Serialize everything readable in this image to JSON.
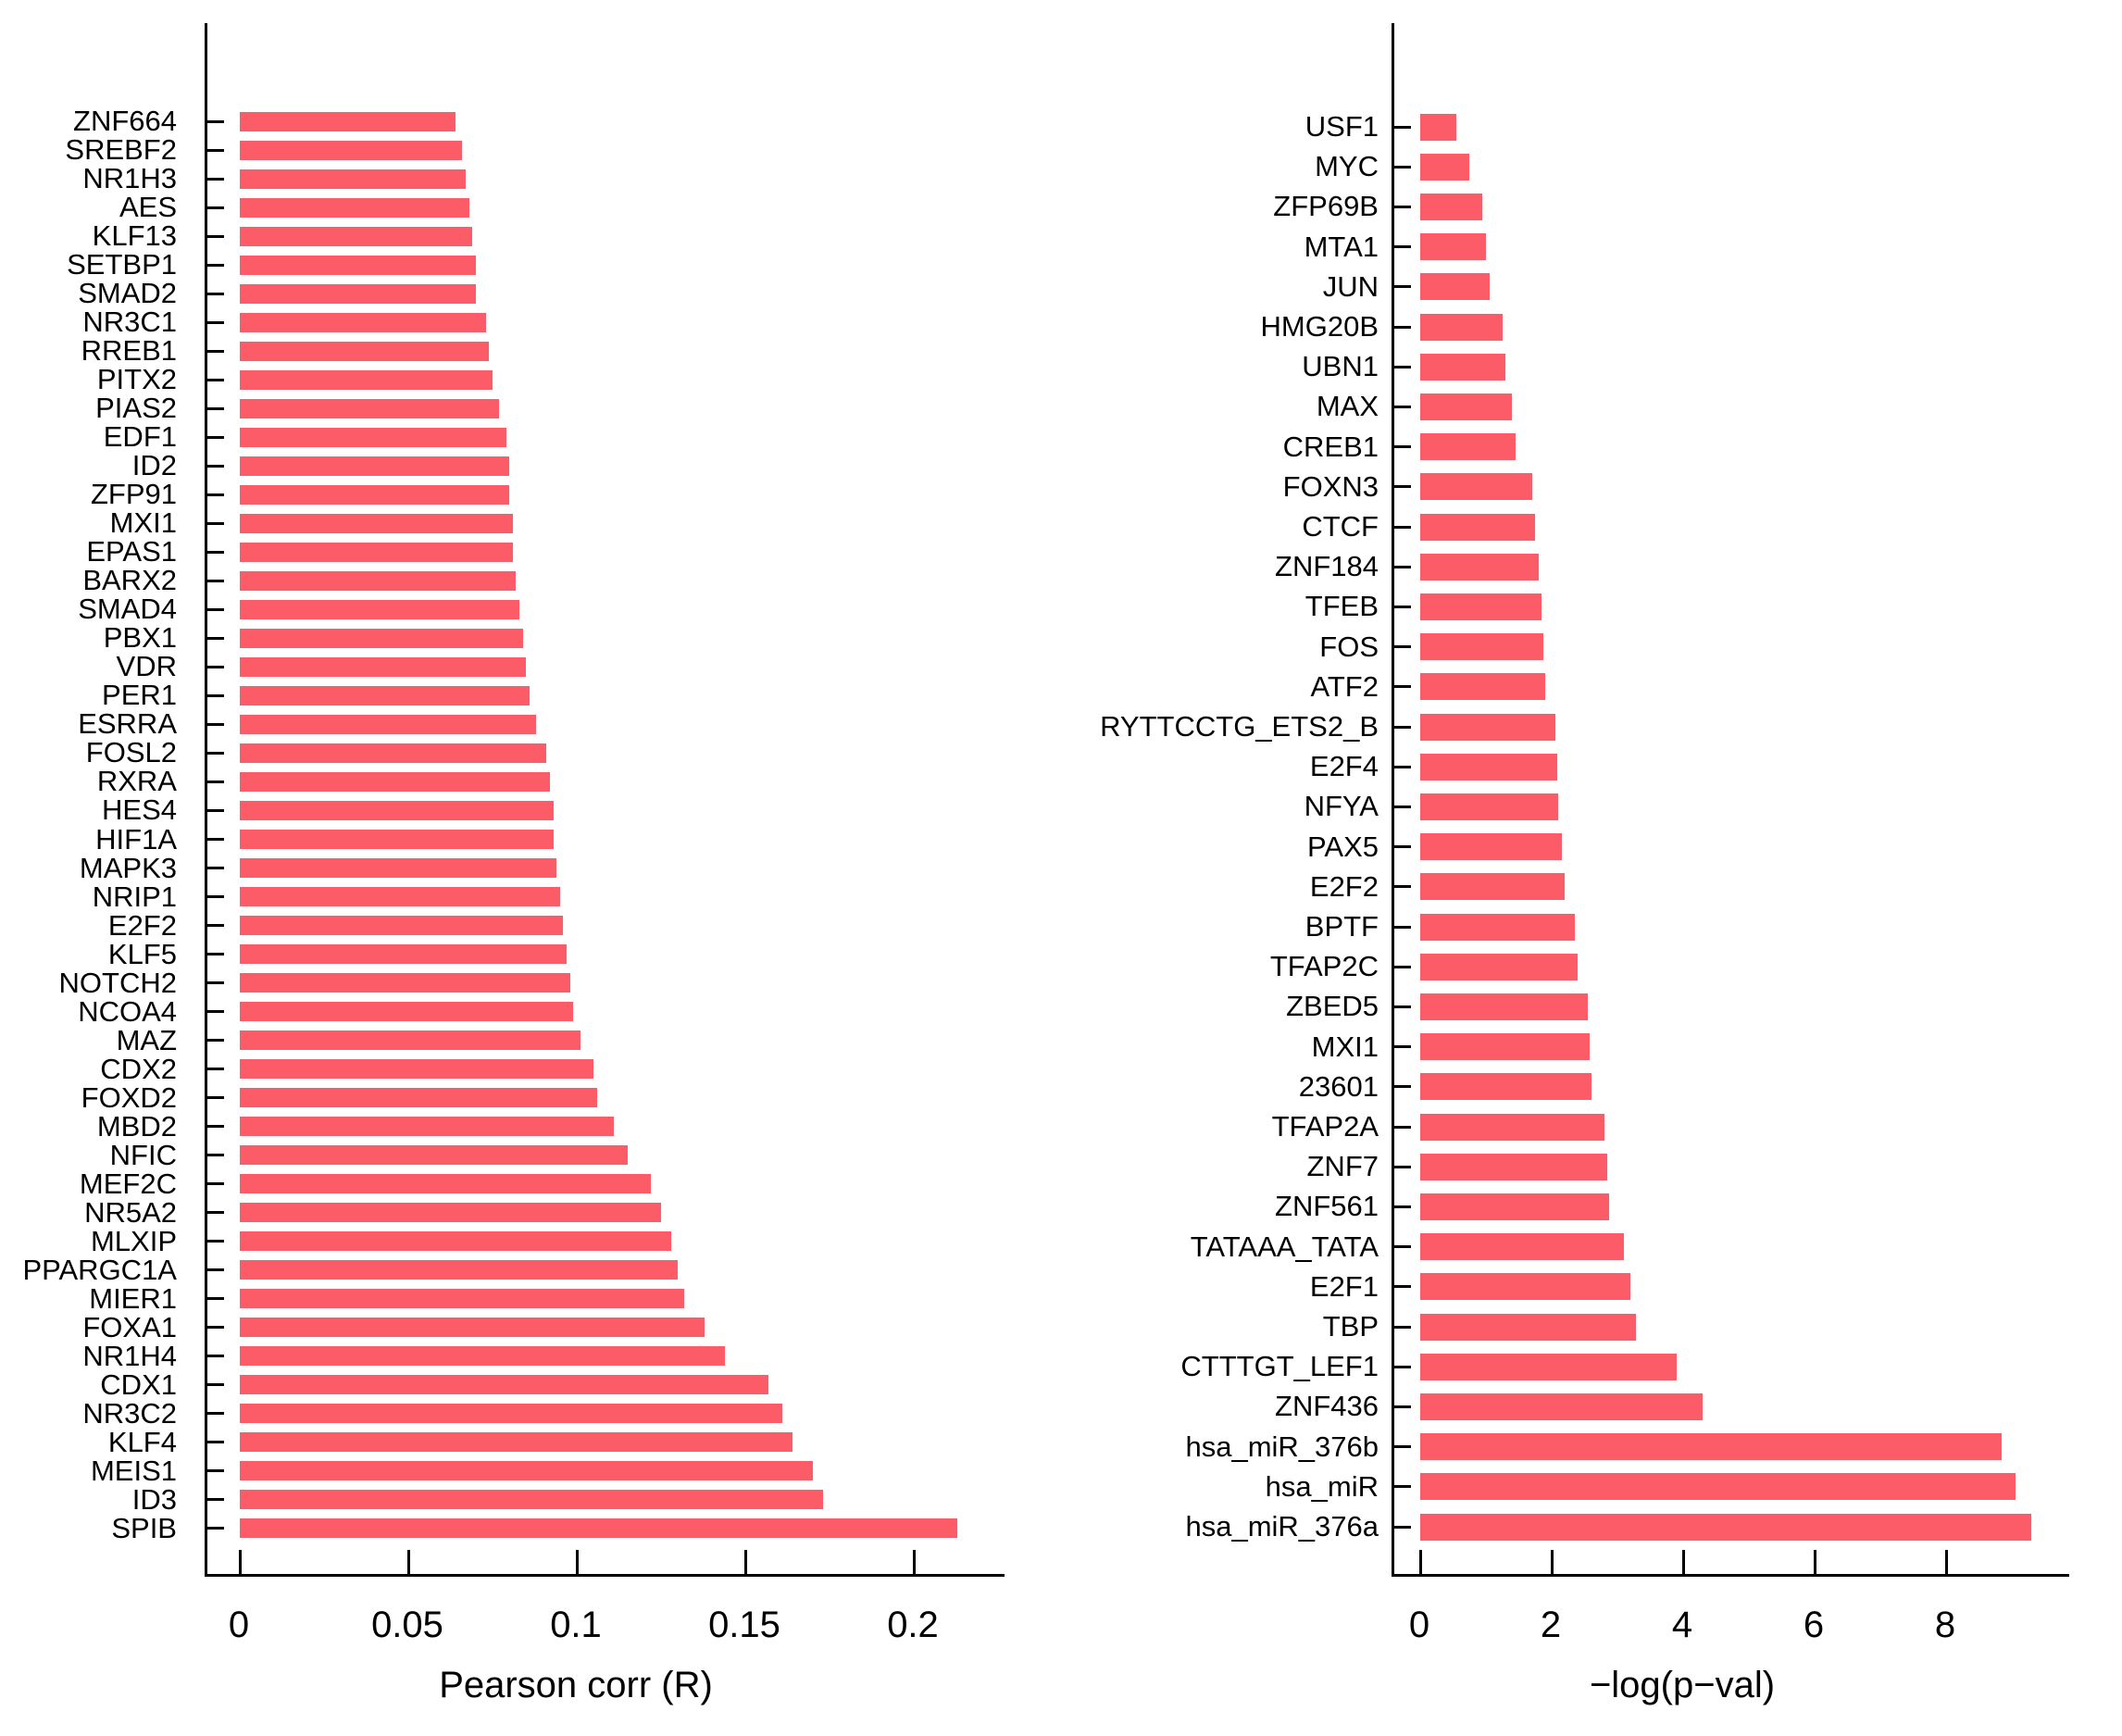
{
  "page": {
    "background_color": "#FFFFFF",
    "text_color": "#000000",
    "bar_color": "#FB5C67"
  },
  "chart_data": [
    {
      "type": "bar",
      "orientation": "horizontal",
      "title": "",
      "xlabel": "Pearson corr (R)",
      "ylabel": "",
      "xlim": [
        0,
        0.227
      ],
      "xticks": [
        0,
        0.05,
        0.1,
        0.15,
        0.2
      ],
      "xtick_labels": [
        "0",
        "0.05",
        "0.1",
        "0.15",
        "0.2"
      ],
      "grid": false,
      "legend": false,
      "bar_color": "#FB5C67",
      "categories": [
        "ZNF664",
        "SREBF2",
        "NR1H3",
        "AES",
        "KLF13",
        "SETBP1",
        "SMAD2",
        "NR3C1",
        "RREB1",
        "PITX2",
        "PIAS2",
        "EDF1",
        "ID2",
        "ZFP91",
        "MXI1",
        "EPAS1",
        "BARX2",
        "SMAD4",
        "PBX1",
        "VDR",
        "PER1",
        "ESRRA",
        "FOSL2",
        "RXRA",
        "HES4",
        "HIF1A",
        "MAPK3",
        "NRIP1",
        "E2F2",
        "KLF5",
        "NOTCH2",
        "NCOA4",
        "MAZ",
        "CDX2",
        "FOXD2",
        "MBD2",
        "NFIC",
        "MEF2C",
        "NR5A2",
        "MLXIP",
        "PPARGC1A",
        "MIER1",
        "FOXA1",
        "NR1H4",
        "CDX1",
        "NR3C2",
        "KLF4",
        "MEIS1",
        "ID3",
        "SPIB"
      ],
      "values": [
        0.064,
        0.066,
        0.067,
        0.068,
        0.069,
        0.07,
        0.07,
        0.073,
        0.074,
        0.075,
        0.077,
        0.079,
        0.08,
        0.08,
        0.081,
        0.081,
        0.082,
        0.083,
        0.084,
        0.085,
        0.086,
        0.088,
        0.091,
        0.092,
        0.093,
        0.093,
        0.094,
        0.095,
        0.096,
        0.097,
        0.098,
        0.099,
        0.101,
        0.105,
        0.106,
        0.111,
        0.115,
        0.122,
        0.125,
        0.128,
        0.13,
        0.132,
        0.138,
        0.144,
        0.157,
        0.161,
        0.164,
        0.17,
        0.173,
        0.213
      ]
    },
    {
      "type": "bar",
      "orientation": "horizontal",
      "title": "",
      "xlabel": "−log(p−val)",
      "ylabel": "",
      "xlim": [
        0,
        9.9
      ],
      "xticks": [
        0,
        2,
        4,
        6,
        8
      ],
      "xtick_labels": [
        "0",
        "2",
        "4",
        "6",
        "8"
      ],
      "grid": false,
      "legend": false,
      "bar_color": "#FB5C67",
      "categories": [
        "USF1",
        "MYC",
        "ZFP69B",
        "MTA1",
        "JUN",
        "HMG20B",
        "UBN1",
        "MAX",
        "CREB1",
        "FOXN3",
        "CTCF",
        "ZNF184",
        "TFEB",
        "FOS",
        "ATF2",
        "RYTTCCTG_ETS2_B",
        "E2F4",
        "NFYA",
        "PAX5",
        "E2F2",
        "BPTF",
        "TFAP2C",
        "ZBED5",
        "MXI1",
        "23601",
        "TFAP2A",
        "ZNF7",
        "ZNF561",
        "TATAAA_TATA",
        "E2F1",
        "TBP",
        "CTTTGT_LEF1",
        "ZNF436",
        "hsa_miR_376b",
        "hsa_miR",
        "hsa_miR_376a"
      ],
      "values": [
        0.55,
        0.75,
        0.95,
        1.0,
        1.05,
        1.25,
        1.3,
        1.4,
        1.45,
        1.7,
        1.75,
        1.8,
        1.85,
        1.88,
        1.9,
        2.05,
        2.08,
        2.1,
        2.15,
        2.2,
        2.35,
        2.4,
        2.55,
        2.58,
        2.6,
        2.8,
        2.84,
        2.87,
        3.1,
        3.2,
        3.28,
        3.9,
        4.3,
        8.85,
        9.05,
        9.3
      ]
    }
  ]
}
